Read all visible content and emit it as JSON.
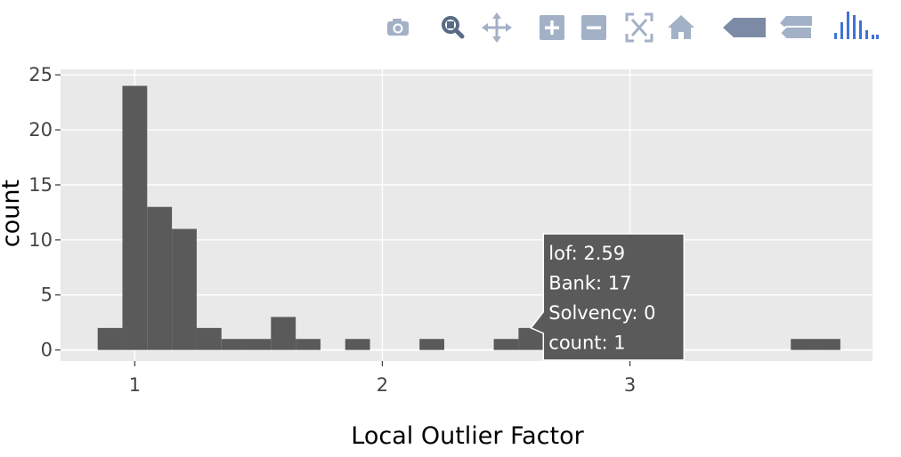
{
  "modebar": {
    "buttons": [
      "camera-icon",
      "zoom-icon",
      "pan-icon",
      "zoom-in-icon",
      "zoom-out-icon",
      "autoscale-icon",
      "home-icon",
      "spike-lines-icon",
      "compare-hover-icon",
      "plotly-logo-icon"
    ],
    "colors": {
      "inactive": "#a3b1c7",
      "active": "#5a6b86",
      "logo": "#3f73d9"
    }
  },
  "chart_data": {
    "type": "bar",
    "xlabel": "Local Outlier Factor",
    "ylabel": "count",
    "xlim": [
      0.7,
      3.98
    ],
    "ylim": [
      -1.0,
      25.5
    ],
    "x_ticks": [
      1,
      2,
      3
    ],
    "y_ticks": [
      0,
      5,
      10,
      15,
      20,
      25
    ],
    "bin_width": 0.1,
    "grid": true,
    "bar_color": "#5a5a5a",
    "bins": [
      {
        "start": 0.85,
        "count": 2
      },
      {
        "start": 0.95,
        "count": 24
      },
      {
        "start": 1.05,
        "count": 13
      },
      {
        "start": 1.15,
        "count": 11
      },
      {
        "start": 1.25,
        "count": 2
      },
      {
        "start": 1.35,
        "count": 1
      },
      {
        "start": 1.45,
        "count": 1
      },
      {
        "start": 1.55,
        "count": 3
      },
      {
        "start": 1.65,
        "count": 1
      },
      {
        "start": 1.85,
        "count": 1
      },
      {
        "start": 2.15,
        "count": 1
      },
      {
        "start": 2.45,
        "count": 1
      },
      {
        "start": 2.55,
        "count": 2
      },
      {
        "start": 3.65,
        "count": 1
      },
      {
        "start": 3.75,
        "count": 1
      }
    ],
    "hover": {
      "bin_index": 12,
      "lines": [
        "lof: 2.59",
        "Bank: 17",
        " Solvency:  0",
        "count: 1"
      ]
    }
  }
}
